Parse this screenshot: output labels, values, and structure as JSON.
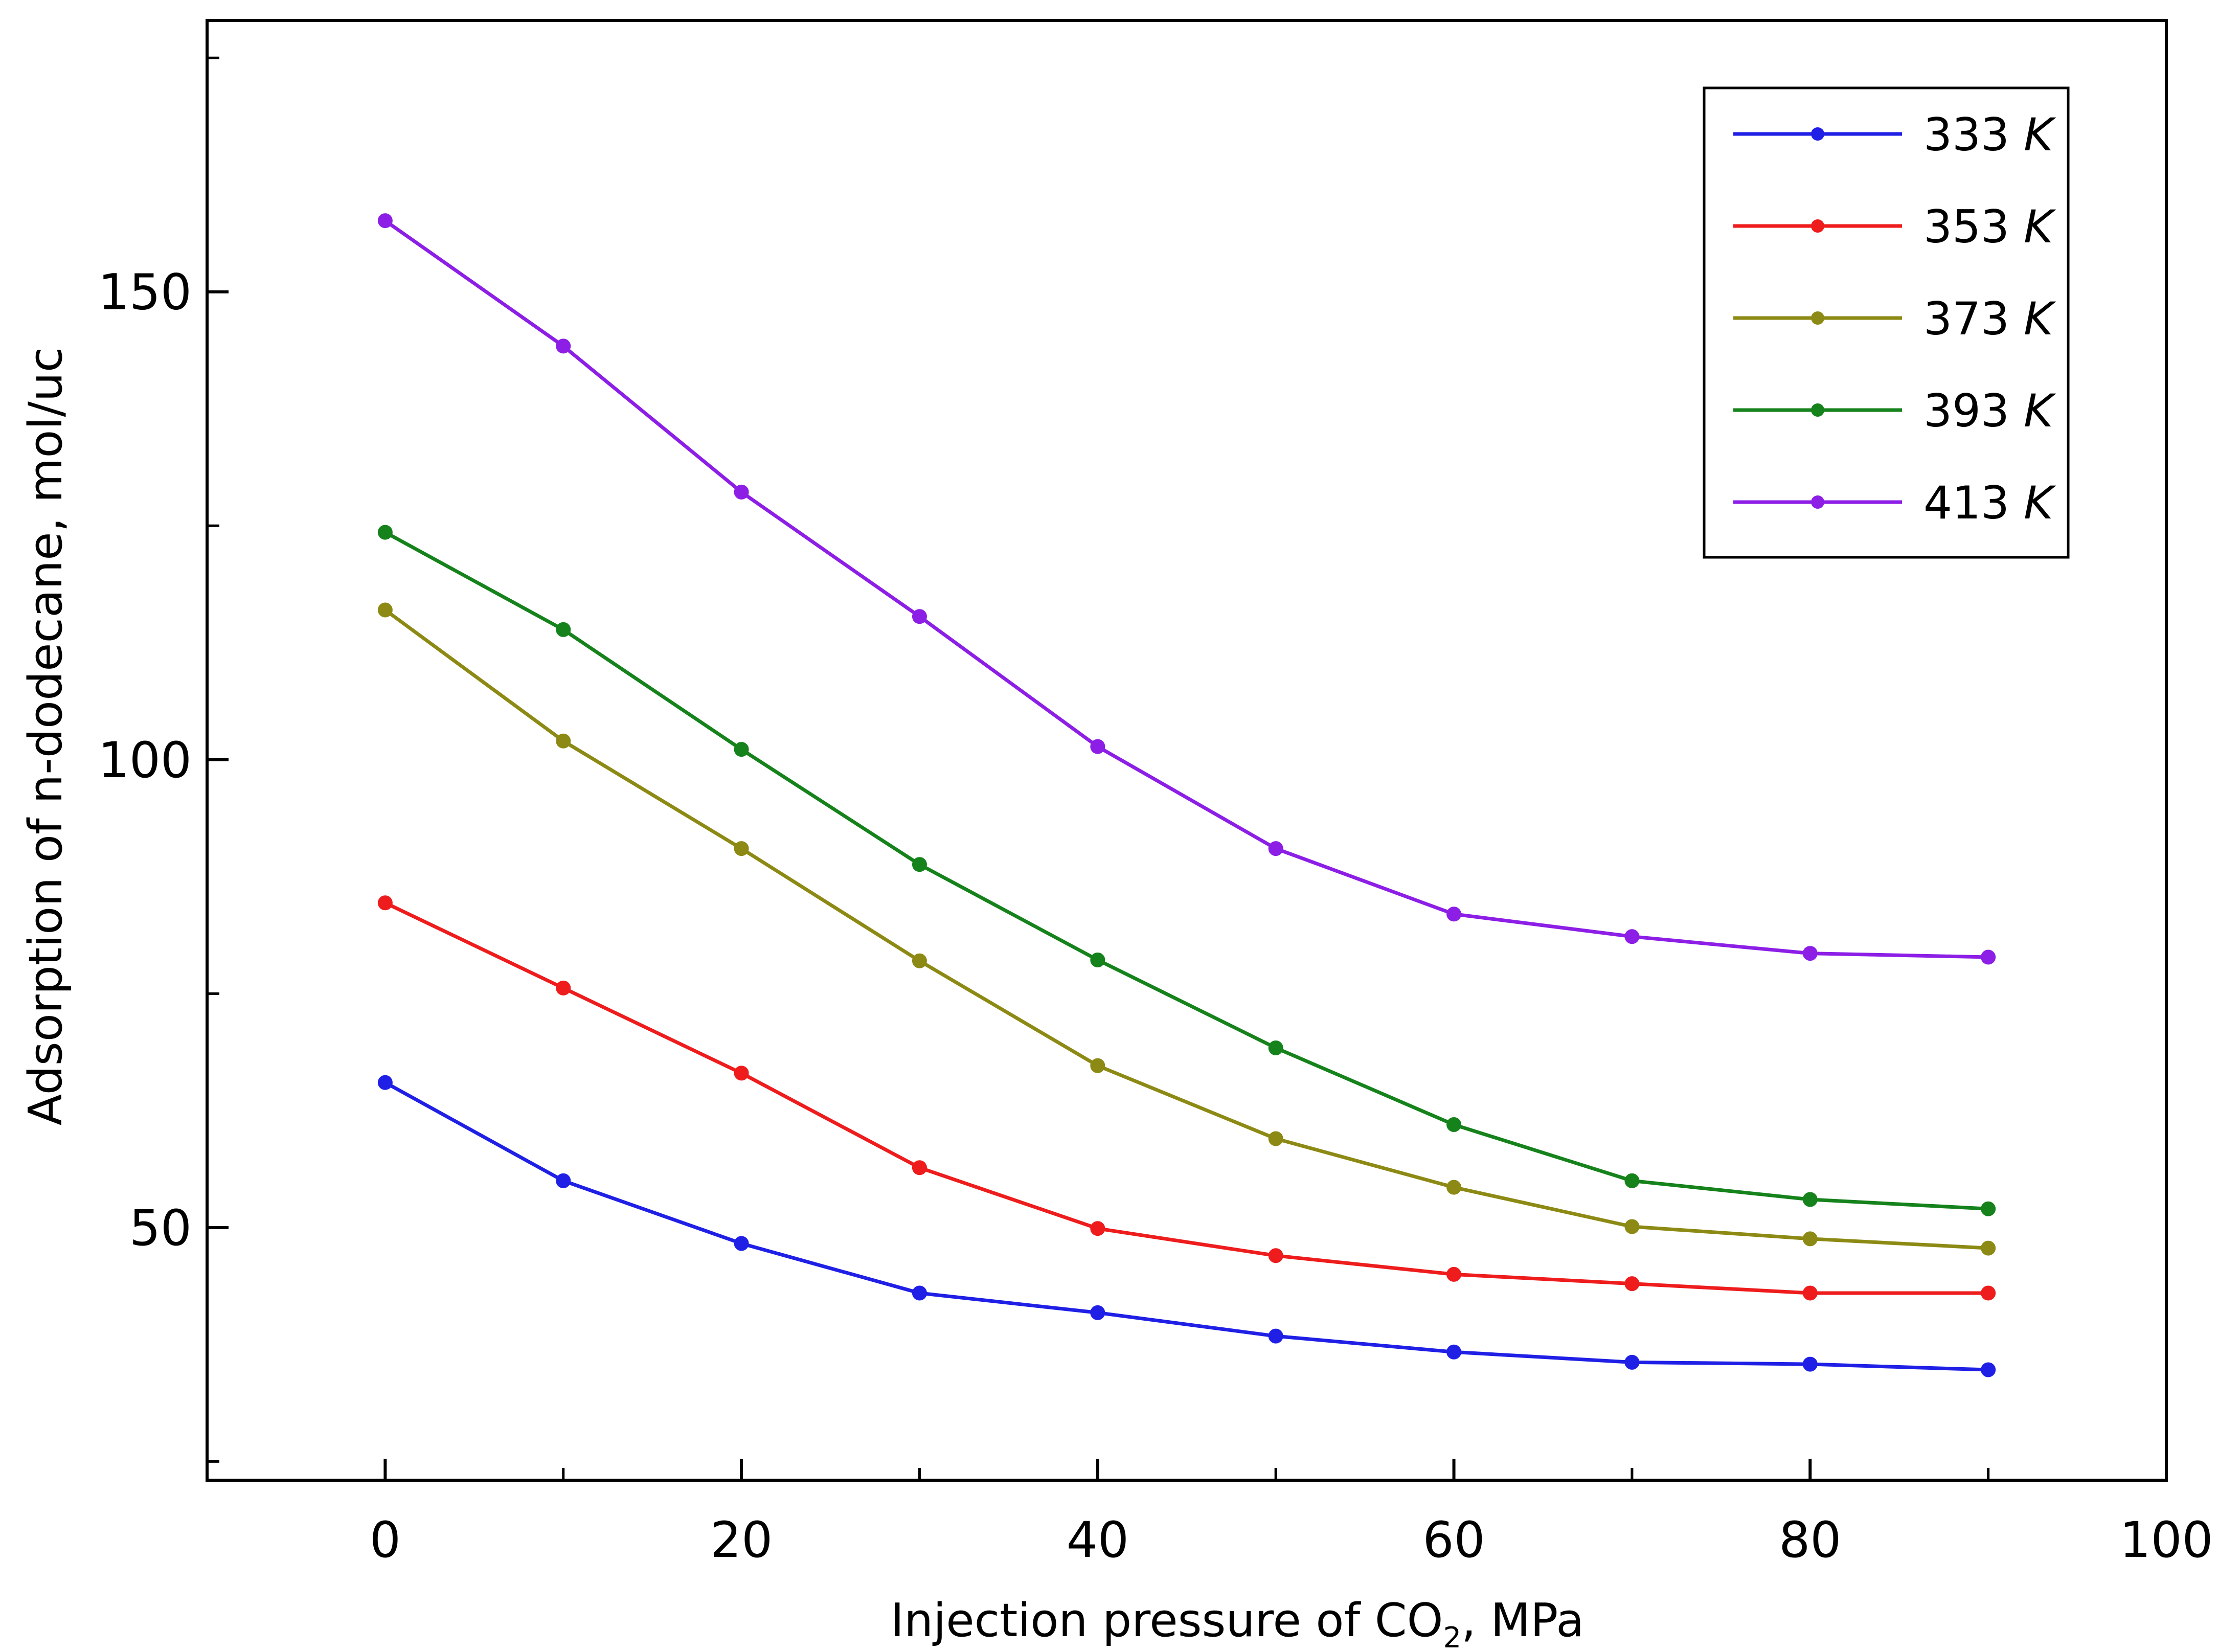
{
  "chart_data": {
    "type": "line",
    "title": "",
    "xlabel": "Injection pressure of CO",
    "xlabel_subscript": "2",
    "xlabel_suffix": ", MPa",
    "ylabel": "Adsorption of n-dodecane, mol/uc",
    "xlim": [
      -10,
      100
    ],
    "ylim": [
      23,
      179
    ],
    "x_ticks": [
      0,
      20,
      40,
      60,
      80,
      100
    ],
    "x_tick_labels": [
      "0",
      "20",
      "40",
      "60",
      "80",
      "100"
    ],
    "x_minor_ticks": [
      10,
      30,
      50,
      70,
      90
    ],
    "y_ticks": [
      50,
      100,
      150
    ],
    "y_tick_labels": [
      "50",
      "100",
      "150"
    ],
    "y_minor_ticks": [
      25,
      75,
      125,
      175
    ],
    "grid": false,
    "legend_position": "top-right",
    "x": [
      0,
      10,
      20,
      30,
      40,
      50,
      60,
      70,
      80,
      90
    ],
    "series": [
      {
        "name": "333",
        "unit": "K",
        "color": "#1f1fe6",
        "values": [
          65.5,
          55,
          48.3,
          43,
          40.9,
          38.4,
          36.7,
          35.6,
          35.4,
          34.8
        ]
      },
      {
        "name": "353",
        "unit": "K",
        "color": "#ee1c1c",
        "values": [
          84.7,
          75.6,
          66.5,
          56.4,
          49.9,
          47,
          45,
          44,
          43,
          43
        ]
      },
      {
        "name": "373",
        "unit": "K",
        "color": "#8c8a14",
        "values": [
          116,
          102,
          90.5,
          78.5,
          67.3,
          59.5,
          54.3,
          50.1,
          48.8,
          47.8
        ]
      },
      {
        "name": "393",
        "unit": "K",
        "color": "#15821b",
        "values": [
          124.3,
          113.9,
          101.1,
          88.8,
          78.6,
          69.2,
          61,
          55,
          53,
          52
        ]
      },
      {
        "name": "413",
        "unit": "K",
        "color": "#8c1ee6",
        "values": [
          157.6,
          144.2,
          128.6,
          115.3,
          101.4,
          90.5,
          83.5,
          81.1,
          79.3,
          78.9
        ]
      }
    ]
  }
}
